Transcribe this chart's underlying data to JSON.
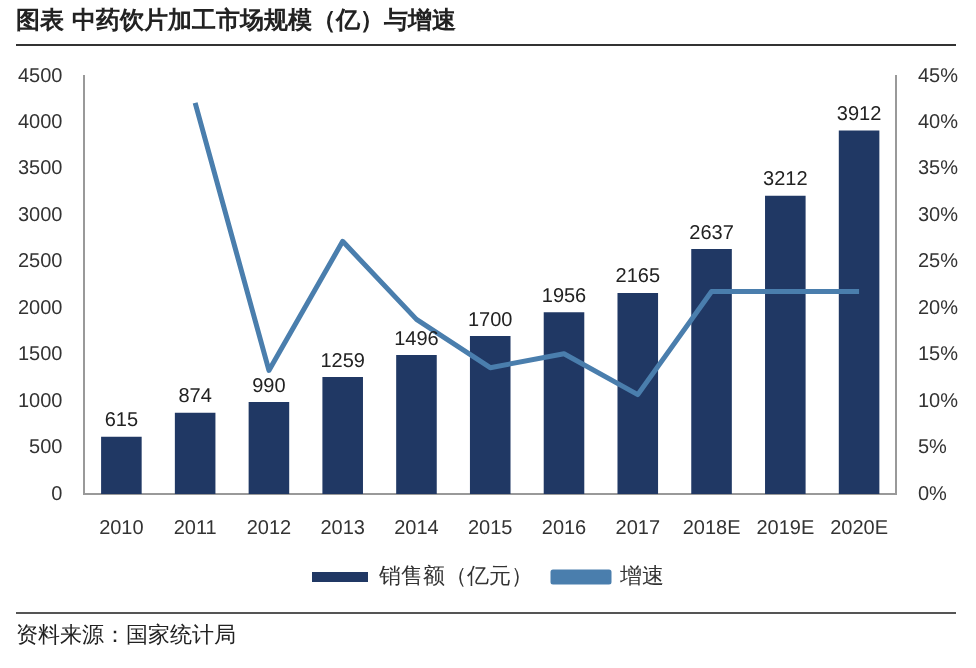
{
  "chart_data": {
    "type": "bar",
    "title": "图表 中药饮片加工市场规模（亿）与增速",
    "categories": [
      "2010",
      "2011",
      "2012",
      "2013",
      "2014",
      "2015",
      "2016",
      "2017",
      "2018E",
      "2019E",
      "2020E"
    ],
    "series": [
      {
        "name": "销售额（亿元）",
        "color": "#203864",
        "values": [
          615,
          874,
          990,
          1259,
          1496,
          1700,
          1956,
          2165,
          2637,
          3212,
          3912
        ],
        "value_labels": [
          "615",
          "874",
          "990",
          "1259",
          "1496",
          "1700",
          "1956",
          "2165",
          "2637",
          "3212",
          "3912"
        ]
      },
      {
        "name": "增速",
        "type": "line",
        "axis": "y2",
        "color": "#4a7ead",
        "values": [
          null,
          42.1,
          13.3,
          27.2,
          18.8,
          13.6,
          15.1,
          10.7,
          21.8,
          21.8,
          21.8
        ]
      }
    ],
    "ylim": [
      0,
      4500
    ],
    "yticks": [
      0,
      500,
      1000,
      1500,
      2000,
      2500,
      3000,
      3500,
      4000,
      4500
    ],
    "y2lim": [
      0,
      45
    ],
    "y2ticks": [
      {
        "value": 0,
        "label": "0%"
      },
      {
        "value": 5,
        "label": "5%"
      },
      {
        "value": 10,
        "label": "10%"
      },
      {
        "value": 15,
        "label": "15%"
      },
      {
        "value": 20,
        "label": "20%"
      },
      {
        "value": 25,
        "label": "25%"
      },
      {
        "value": 30,
        "label": "30%"
      },
      {
        "value": 35,
        "label": "35%"
      },
      {
        "value": 40,
        "label": "40%"
      },
      {
        "value": 45,
        "label": "45%"
      }
    ],
    "grid": false,
    "legend": "bottom",
    "marker": "none",
    "annotations": [
      "资料来源：国家统计局"
    ]
  }
}
